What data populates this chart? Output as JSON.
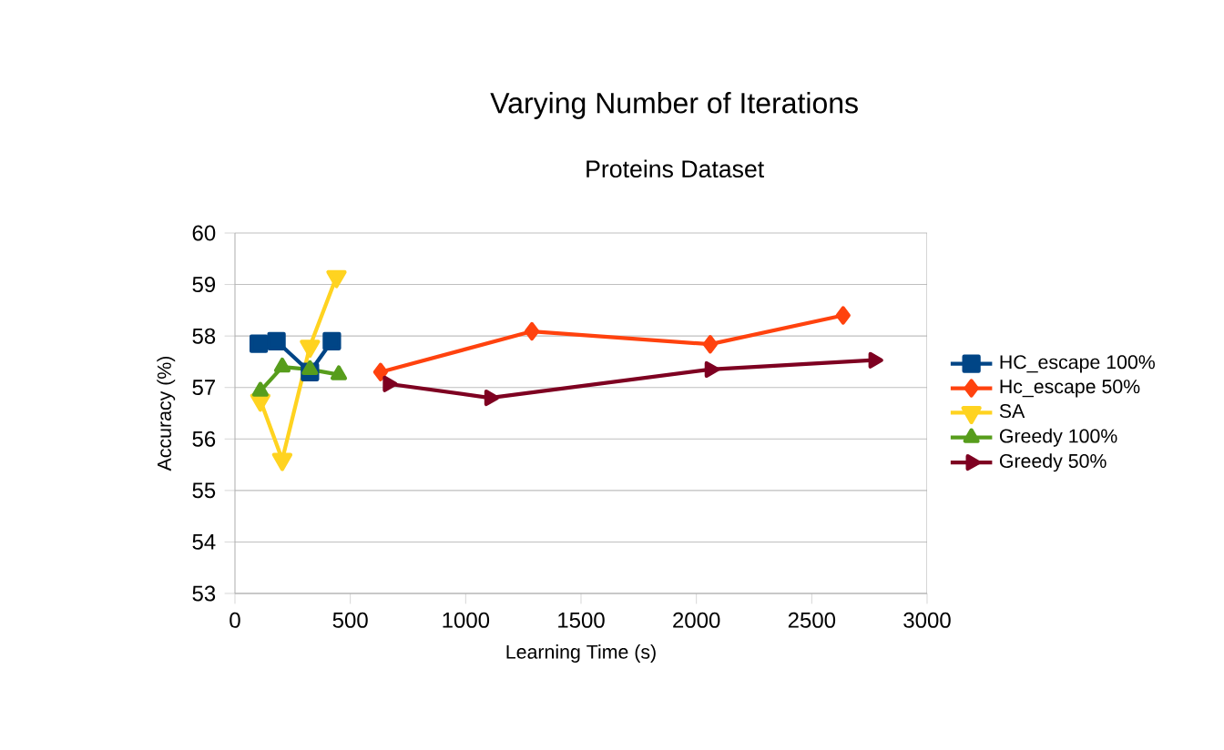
{
  "chart_data": {
    "type": "line",
    "title": "Varying Number of Iterations",
    "subtitle": "Proteins Dataset",
    "xlabel": "Learning Time (s)",
    "ylabel": "Accuracy (%)",
    "xlim": [
      0,
      3000
    ],
    "xticks": [
      0,
      500,
      1000,
      1500,
      2000,
      2500,
      3000
    ],
    "ylim": [
      53,
      60
    ],
    "yticks": [
      53,
      54,
      55,
      56,
      57,
      58,
      59,
      60
    ],
    "grid": "y",
    "legend": "right",
    "series": [
      {
        "name": "HC_escape 100%",
        "color": "#004586",
        "marker": "square",
        "x": [
          103,
          180,
          325,
          420
        ],
        "values": [
          57.85,
          57.9,
          57.3,
          57.9
        ]
      },
      {
        "name": "Hc_escape 50%",
        "color": "#ff420e",
        "marker": "diamond",
        "x": [
          631,
          1287,
          2060,
          2636
        ],
        "values": [
          57.3,
          58.09,
          57.84,
          58.4
        ]
      },
      {
        "name": "SA",
        "color": "#ffd320",
        "marker": "triangle-down",
        "x": [
          110,
          205,
          325,
          440
        ],
        "values": [
          56.75,
          55.6,
          57.8,
          59.15
        ]
      },
      {
        "name": "Greedy 100%",
        "color": "#579d1c",
        "marker": "triangle",
        "x": [
          110,
          205,
          325,
          450
        ],
        "values": [
          56.93,
          57.4,
          57.35,
          57.25
        ]
      },
      {
        "name": "Greedy 50%",
        "color": "#7e0021",
        "marker": "triangle-right",
        "x": [
          665,
          1105,
          2060,
          2770
        ],
        "values": [
          57.07,
          56.8,
          57.35,
          57.53
        ]
      }
    ]
  }
}
